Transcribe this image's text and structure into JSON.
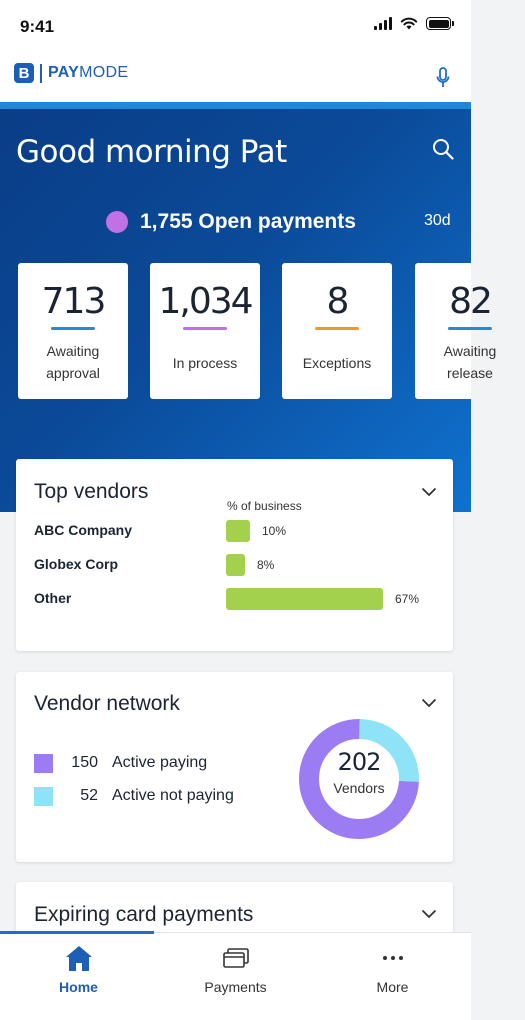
{
  "status_bar": {
    "time": "9:41"
  },
  "brand": {
    "badge": "B",
    "name_bold": "PAY",
    "name_light": "MODE"
  },
  "icons": {
    "mic": "microphone-icon",
    "search": "search-icon",
    "chevron": "chevron-down-icon",
    "home": "home-icon",
    "payments": "payments-icon",
    "more": "more-icon"
  },
  "colors": {
    "brand_blue": "#1d5fb4",
    "hero_start": "#0a3d86",
    "hero_end": "#0f72cf",
    "open_dot": "#c270e6",
    "awaiting_approval": "#1f8be0",
    "in_process": "#c270e6",
    "exceptions": "#f5962a",
    "vendor_bar": "#a3d14d",
    "active_paying": "#9b7cf2",
    "active_not_paying": "#8fe3f7"
  },
  "hero": {
    "greeting": "Good morning Pat",
    "open_payments_text": "1,755 Open payments",
    "period": "30d"
  },
  "stats": [
    {
      "value": "713",
      "label_lines": [
        "Awaiting",
        "approval"
      ]
    },
    {
      "value": "1,034",
      "label_lines": [
        "In process"
      ]
    },
    {
      "value": "8",
      "label_lines": [
        "Exceptions"
      ]
    },
    {
      "value": "82",
      "label_lines": [
        "Awaiting",
        "release"
      ]
    }
  ],
  "top_vendors": {
    "title": "Top vendors",
    "subtitle": "% of business",
    "vendors": [
      {
        "name": "ABC Company",
        "percent_label": "10%",
        "percent": 10
      },
      {
        "name": "Globex Corp",
        "percent_label": "8%",
        "percent": 8
      },
      {
        "name": "Other",
        "percent_label": "67%",
        "percent": 67
      }
    ]
  },
  "vendor_network": {
    "title": "Vendor network",
    "legend": [
      {
        "count": "150",
        "label": "Active paying",
        "value": 150
      },
      {
        "count": "52",
        "label": "Active not paying",
        "value": 52
      }
    ],
    "total": "202",
    "total_label": "Vendors"
  },
  "expiring": {
    "title": "Expiring card payments"
  },
  "tabs": [
    {
      "label": "Home",
      "active": true
    },
    {
      "label": "Payments",
      "active": false
    },
    {
      "label": "More",
      "active": false
    }
  ]
}
